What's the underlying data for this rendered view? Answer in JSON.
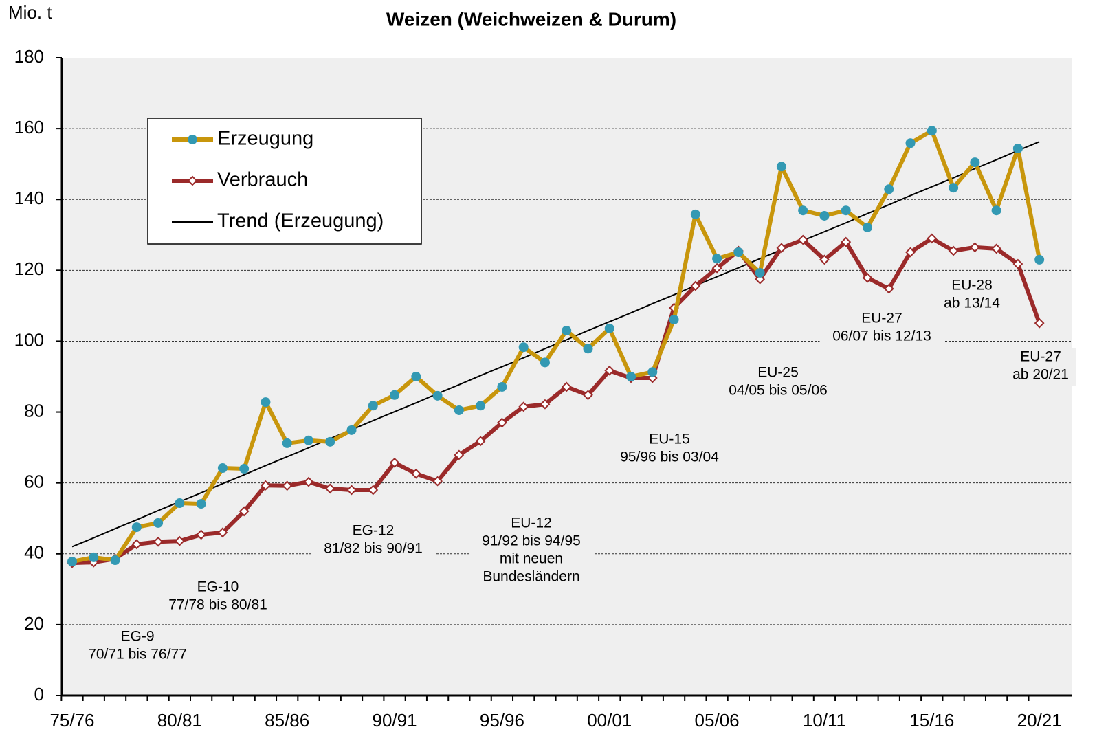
{
  "chart_data": {
    "type": "line",
    "title": "Weizen (Weichweizen & Durum)",
    "y_label": "Mio. t",
    "categories": [
      "75/76",
      null,
      null,
      null,
      null,
      "80/81",
      null,
      null,
      null,
      null,
      "85/86",
      null,
      null,
      null,
      null,
      "90/91",
      null,
      null,
      null,
      null,
      "95/96",
      null,
      null,
      null,
      null,
      "00/01",
      null,
      null,
      null,
      null,
      "05/06",
      null,
      null,
      null,
      null,
      "10/11",
      null,
      null,
      null,
      null,
      "15/16",
      null,
      null,
      null,
      null,
      "20/21"
    ],
    "series": [
      {
        "name": "Erzeugung",
        "color": "#c8960c",
        "marker_color": "#3399b3",
        "values": [
          37.8,
          39,
          38.2,
          47.5,
          48.7,
          54.3,
          54.1,
          64.2,
          64,
          82.8,
          71.2,
          72,
          71.6,
          74.9,
          81.8,
          84.8,
          90,
          84.6,
          80.5,
          81.8,
          87.1,
          98.3,
          94,
          103,
          97.9,
          103.6,
          90,
          91.3,
          106.1,
          135.8,
          123.3,
          125.1,
          119.3,
          149.3,
          136.9,
          135.4,
          136.9,
          132.1,
          142.9,
          155.9,
          159.4,
          143.3,
          150.5,
          136.9,
          154.4,
          123
        ]
      },
      {
        "name": "Verbrauch",
        "color": "#9b2a2a",
        "marker_color": "#ffffff",
        "values": [
          37.4,
          37.6,
          38.6,
          42.7,
          43.4,
          43.6,
          45.4,
          46,
          52,
          59.3,
          59.2,
          60.3,
          58.4,
          58,
          58,
          65.7,
          62.6,
          60.5,
          67.9,
          71.8,
          77,
          81.5,
          82.2,
          87.1,
          84.8,
          91.7,
          89.6,
          89.6,
          109.4,
          115.6,
          120.6,
          125.5,
          117.5,
          126.3,
          128.6,
          123,
          128,
          117.9,
          114.8,
          125.1,
          129,
          125.5,
          126.5,
          126.1,
          121.8,
          105.1
        ]
      },
      {
        "name": "Trend (Erzeugung)",
        "color": "#000000",
        "values": [
          42.0,
          44.5,
          47.1,
          49.6,
          52.2,
          54.7,
          57.2,
          59.8,
          62.3,
          64.9,
          67.4,
          69.9,
          72.5,
          75.0,
          77.6,
          80.1,
          82.6,
          85.2,
          87.7,
          90.3,
          92.8,
          95.3,
          97.9,
          100.4,
          103.0,
          105.5,
          108.0,
          110.6,
          113.1,
          115.7,
          118.2,
          120.7,
          123.3,
          125.8,
          128.4,
          130.9,
          133.4,
          136.0,
          138.5,
          141.1,
          143.6,
          146.1,
          148.7,
          151.2,
          153.8,
          156.3
        ]
      }
    ],
    "annotations": [
      [
        "EG-9",
        "70/71 bis 76/77"
      ],
      [
        "EG-10",
        "77/78 bis 80/81"
      ],
      [
        "EG-12",
        "81/82 bis 90/91"
      ],
      [
        "EU-12",
        "91/92 bis 94/95",
        "mit neuen",
        "Bundesländern"
      ],
      [
        "EU-15",
        "95/96 bis 03/04"
      ],
      [
        "EU-25",
        "04/05 bis 05/06"
      ],
      [
        "EU-27",
        "06/07 bis 12/13"
      ],
      [
        "EU-28",
        "ab 13/14"
      ],
      [
        "EU-27",
        "ab 20/21"
      ]
    ],
    "ylim": [
      0,
      180
    ],
    "yticks": [
      0,
      20,
      40,
      60,
      80,
      100,
      120,
      140,
      160,
      180
    ],
    "grid": true,
    "legend": "upper left"
  }
}
